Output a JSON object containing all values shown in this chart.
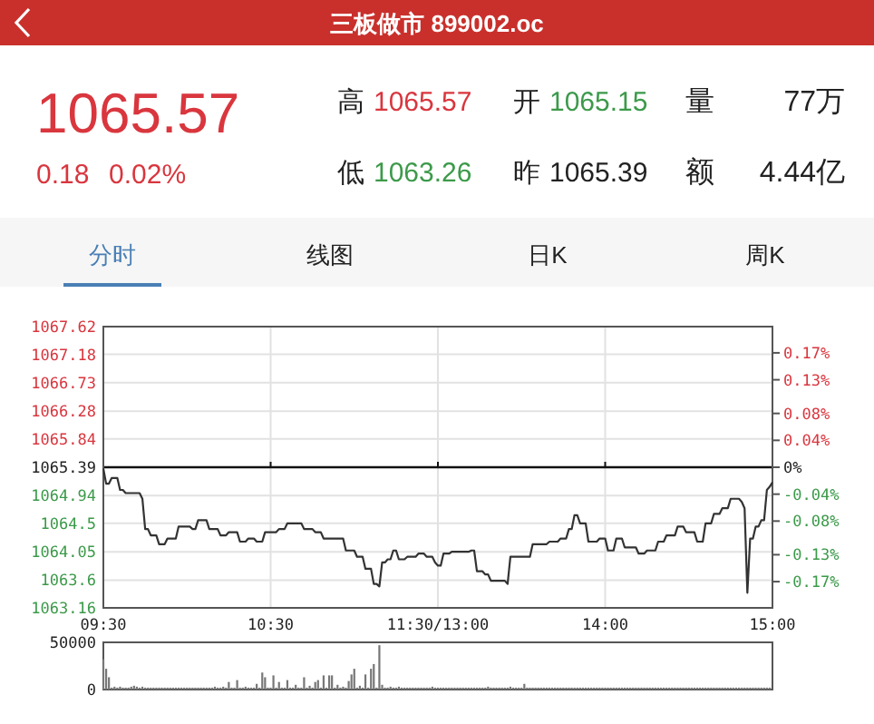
{
  "chart_data": [
    {
      "type": "other",
      "title": "三板做市 899002.oc",
      "annotations": [
        "1065.57",
        "0.18",
        "0.02%",
        "高",
        "1065.57",
        "开",
        "1065.15",
        "量",
        "77万",
        "低",
        "1063.26",
        "昨",
        "1065.39",
        "额",
        "4.44亿",
        "分时",
        "线图",
        "日K",
        "周K"
      ]
    },
    {
      "type": "line",
      "color": "#333333",
      "grid": true,
      "categories": [
        "09:30",
        null,
        null,
        null,
        null,
        null,
        null,
        null,
        null,
        null,
        null,
        null,
        null,
        null,
        null,
        null,
        null,
        null,
        null,
        null,
        null,
        null,
        null,
        null,
        null,
        null,
        null,
        null,
        null,
        null,
        null,
        null,
        null,
        null,
        null,
        null,
        null,
        null,
        null,
        null,
        null,
        null,
        null,
        null,
        null,
        null,
        null,
        null,
        null,
        null,
        null,
        null,
        null,
        null,
        null,
        null,
        null,
        null,
        null,
        null,
        "10:30",
        null,
        null,
        null,
        null,
        null,
        null,
        null,
        null,
        null,
        null,
        null,
        null,
        null,
        null,
        null,
        null,
        null,
        null,
        null,
        null,
        null,
        null,
        null,
        null,
        null,
        null,
        null,
        null,
        null,
        null,
        null,
        null,
        null,
        null,
        null,
        null,
        null,
        null,
        null,
        null,
        null,
        null,
        null,
        null,
        null,
        null,
        null,
        null,
        null,
        null,
        null,
        null,
        null,
        null,
        null,
        null,
        null,
        null,
        null,
        "11:30/13:00",
        null,
        null,
        null,
        null,
        null,
        null,
        null,
        null,
        null,
        null,
        null,
        null,
        null,
        null,
        null,
        null,
        null,
        null,
        null,
        null,
        null,
        null,
        null,
        null,
        null,
        null,
        null,
        null,
        null,
        null,
        null,
        null,
        null,
        null,
        null,
        null,
        null,
        null,
        null,
        null,
        null,
        null,
        null,
        null,
        null,
        null,
        null,
        null,
        null,
        null,
        null,
        null,
        null,
        null,
        null,
        null,
        null,
        null,
        null,
        "14:00",
        null,
        null,
        null,
        null,
        null,
        null,
        null,
        null,
        null,
        null,
        null,
        null,
        null,
        null,
        null,
        null,
        null,
        null,
        null,
        null,
        null,
        null,
        null,
        null,
        null,
        null,
        null,
        null,
        null,
        null,
        null,
        null,
        null,
        null,
        null,
        null,
        null,
        null,
        null,
        null,
        null,
        null,
        null,
        null,
        null,
        null,
        null,
        null,
        null,
        null,
        null,
        null,
        null,
        null,
        null,
        null,
        null,
        null,
        null,
        "15:00"
      ],
      "values": [
        1065.37,
        1065.13,
        1065.13,
        1065.22,
        1065.22,
        1065.22,
        1065.03,
        1065.03,
        1064.98,
        1064.98,
        1064.98,
        1064.98,
        1064.98,
        1064.98,
        1064.89,
        1064.41,
        1064.41,
        1064.31,
        1064.31,
        1064.31,
        1064.17,
        1064.17,
        1064.17,
        1064.26,
        1064.26,
        1064.26,
        1064.26,
        1064.45,
        1064.45,
        1064.45,
        1064.45,
        1064.45,
        1064.41,
        1064.41,
        1064.55,
        1064.55,
        1064.55,
        1064.55,
        1064.41,
        1064.41,
        1064.41,
        1064.41,
        1064.31,
        1064.31,
        1064.31,
        1064.36,
        1064.36,
        1064.36,
        1064.36,
        1064.21,
        1064.21,
        1064.21,
        1064.26,
        1064.26,
        1064.26,
        1064.21,
        1064.21,
        1064.21,
        1064.36,
        1064.36,
        1064.36,
        1064.36,
        1064.36,
        1064.41,
        1064.41,
        1064.41,
        1064.5,
        1064.5,
        1064.5,
        1064.5,
        1064.5,
        1064.5,
        1064.41,
        1064.41,
        1064.41,
        1064.41,
        1064.36,
        1064.36,
        1064.36,
        1064.26,
        1064.26,
        1064.26,
        1064.26,
        1064.26,
        1064.26,
        1064.26,
        1064.26,
        1064.07,
        1064.07,
        1064.07,
        1064.07,
        1063.97,
        1063.97,
        1063.97,
        1063.78,
        1063.78,
        1063.78,
        1063.54,
        1063.54,
        1063.5,
        1063.88,
        1063.88,
        1063.93,
        1063.93,
        1064.07,
        1064.07,
        1063.93,
        1063.93,
        1063.93,
        1063.97,
        1063.97,
        1063.97,
        1063.97,
        1064.02,
        1064.02,
        1064.02,
        1063.97,
        1063.97,
        1063.97,
        1063.88,
        1063.83,
        1063.83,
        1064.02,
        1064.02,
        1064.02,
        1064.05,
        1064.05,
        1064.05,
        1064.05,
        1064.05,
        1064.05,
        1064.05,
        1064.07,
        1064.07,
        1063.74,
        1063.74,
        1063.74,
        1063.69,
        1063.69,
        1063.59,
        1063.59,
        1063.59,
        1063.59,
        1063.59,
        1063.59,
        1063.54,
        1063.97,
        1063.97,
        1063.97,
        1063.97,
        1063.97,
        1063.97,
        1063.97,
        1063.97,
        1064.17,
        1064.17,
        1064.17,
        1064.17,
        1064.17,
        1064.17,
        1064.21,
        1064.21,
        1064.21,
        1064.21,
        1064.26,
        1064.26,
        1064.26,
        1064.41,
        1064.41,
        1064.63,
        1064.63,
        1064.5,
        1064.5,
        1064.5,
        1064.21,
        1064.21,
        1064.21,
        1064.21,
        1064.26,
        1064.26,
        1064.26,
        1064.07,
        1064.07,
        1064.07,
        1064.26,
        1064.26,
        1064.26,
        1064.12,
        1064.12,
        1064.12,
        1064.12,
        1064.12,
        1064.02,
        1064.02,
        1064.02,
        1064.07,
        1064.07,
        1064.07,
        1064.07,
        1064.21,
        1064.21,
        1064.21,
        1064.31,
        1064.31,
        1064.31,
        1064.31,
        1064.45,
        1064.45,
        1064.45,
        1064.36,
        1064.36,
        1064.36,
        1064.36,
        1064.21,
        1064.21,
        1064.21,
        1064.5,
        1064.5,
        1064.5,
        1064.65,
        1064.65,
        1064.65,
        1064.74,
        1064.74,
        1064.74,
        1064.89,
        1064.89,
        1064.89,
        1064.89,
        1064.84,
        1064.74,
        1063.4,
        1064.26,
        1064.26,
        1064.45,
        1064.45,
        1064.55,
        1064.55,
        1065.03,
        1065.08,
        1065.15
      ],
      "ylim": [
        1063.16,
        1067.62
      ],
      "yticks": [
        1067.62,
        1067.18,
        1066.73,
        1066.28,
        1065.84,
        1065.39,
        1064.94,
        1064.5,
        1064.05,
        1063.6,
        1063.16
      ],
      "y2lim": [
        -0.209,
        0.209
      ],
      "y2ticks": [
        {
          "value": 0.17,
          "label": "0.17%"
        },
        {
          "value": 0.13,
          "label": "0.13%"
        },
        {
          "value": 0.08,
          "label": "0.08%"
        },
        {
          "value": 0.04,
          "label": "0.04%"
        },
        {
          "value": 0,
          "label": "0%"
        },
        {
          "value": -0.04,
          "label": "-0.04%"
        },
        {
          "value": -0.08,
          "label": "-0.08%"
        },
        {
          "value": -0.13,
          "label": "-0.13%"
        },
        {
          "value": -0.17,
          "label": "-0.17%"
        }
      ],
      "ref_lines": [
        {
          "axis": "y",
          "value": 1065.39
        }
      ]
    },
    {
      "type": "bar",
      "color": "#777777",
      "tick_labels": "y",
      "categories": [
        null,
        null,
        null,
        null,
        null,
        null,
        null,
        null,
        null,
        null,
        null,
        null,
        null,
        null,
        null,
        null,
        null,
        null,
        null,
        null,
        null,
        null,
        null,
        null,
        null,
        null,
        null,
        null,
        null,
        null,
        null,
        null,
        null,
        null,
        null,
        null,
        null,
        null,
        null,
        null,
        null,
        null,
        null,
        null,
        null,
        null,
        null,
        null,
        null,
        null,
        null,
        null,
        null,
        null,
        null,
        null,
        null,
        null,
        null,
        null,
        null,
        null,
        null,
        null,
        null,
        null,
        null,
        null,
        null,
        null,
        null,
        null,
        null,
        null,
        null,
        null,
        null,
        null,
        null,
        null,
        null,
        null,
        null,
        null,
        null,
        null,
        null,
        null,
        null,
        null,
        null,
        null,
        null,
        null,
        null,
        null,
        null,
        null,
        null,
        null,
        null,
        null,
        null,
        null,
        null,
        null,
        null,
        null,
        null,
        null,
        null,
        null,
        null,
        null,
        null,
        null,
        null,
        null,
        null,
        null,
        null,
        null,
        null,
        null,
        null,
        null,
        null,
        null,
        null,
        null,
        null,
        null,
        null,
        null,
        null,
        null,
        null,
        null,
        null,
        null,
        null,
        null,
        null,
        null,
        null,
        null,
        null,
        null,
        null,
        null,
        null,
        null,
        null,
        null,
        null,
        null,
        null,
        null,
        null,
        null,
        null,
        null,
        null,
        null,
        null,
        null,
        null,
        null,
        null,
        null,
        null,
        null,
        null,
        null,
        null,
        null,
        null,
        null,
        null,
        null,
        null,
        null,
        null,
        null,
        null,
        null,
        null,
        null,
        null,
        null,
        null,
        null,
        null,
        null,
        null,
        null,
        null,
        null,
        null,
        null,
        null,
        null,
        null,
        null,
        null,
        null,
        null,
        null,
        null,
        null,
        null,
        null,
        null,
        null,
        null,
        null,
        null,
        null,
        null,
        null,
        null,
        null,
        null,
        null,
        null,
        null,
        null,
        null,
        null,
        null,
        null,
        null,
        null,
        null,
        null,
        null,
        null,
        null,
        null,
        null,
        null
      ],
      "values": [
        32000,
        22000,
        13000,
        2000,
        3000,
        2000,
        3000,
        2000,
        2000,
        2000,
        3000,
        4000,
        3000,
        2000,
        3000,
        2000,
        2000,
        2000,
        2000,
        2000,
        2000,
        2000,
        2000,
        2000,
        2000,
        2000,
        2000,
        2000,
        2000,
        2000,
        2000,
        2000,
        2000,
        2000,
        2000,
        2000,
        2000,
        2000,
        2000,
        2000,
        3000,
        2000,
        2000,
        3000,
        2000,
        8000,
        2000,
        2000,
        10000,
        2000,
        2000,
        3000,
        2000,
        2000,
        2000,
        6000,
        2000,
        18000,
        13000,
        2000,
        2000,
        15000,
        2000,
        8000,
        2000,
        2000,
        10000,
        2000,
        2000,
        5000,
        2000,
        2000,
        13000,
        2000,
        4000,
        2000,
        8000,
        10000,
        2000,
        15000,
        2000,
        15000,
        15000,
        2000,
        5000,
        2000,
        3000,
        2000,
        9000,
        16000,
        22000,
        2000,
        4000,
        2000,
        16000,
        2000,
        22000,
        27000,
        2000,
        47000,
        5000,
        2000,
        2000,
        3000,
        2000,
        2000,
        3000,
        2000,
        2000,
        2000,
        2000,
        2000,
        2000,
        2000,
        2000,
        2000,
        2000,
        2000,
        3000,
        2000,
        2000,
        2000,
        2000,
        2000,
        2000,
        2000,
        2000,
        2000,
        2000,
        2000,
        2000,
        2000,
        2000,
        2000,
        2000,
        2000,
        2000,
        2000,
        3000,
        2000,
        2000,
        2000,
        2000,
        2000,
        2000,
        2000,
        3000,
        2000,
        2000,
        2000,
        2000,
        6000,
        2000,
        2000,
        2000,
        2000,
        2000,
        2000,
        2000,
        2000,
        2000,
        2000,
        2000,
        2000,
        2000,
        2000,
        2000,
        2000,
        2000,
        2000,
        2000,
        2000,
        2000,
        2000,
        2000,
        2000,
        2000,
        2000,
        2000,
        2000,
        2000,
        2000,
        2000,
        2000,
        2000,
        2000,
        2000,
        2000,
        2000,
        2000,
        2000,
        2000,
        2000,
        2000,
        2000,
        2000,
        2000,
        2000,
        2000,
        2000,
        2000,
        2000,
        2000,
        2000,
        2000,
        2000,
        2000,
        2000,
        2000,
        2000,
        2000,
        2000,
        2000,
        2000,
        2000,
        2000,
        2000,
        2000,
        2000,
        2000,
        2000,
        2000,
        2000,
        2000,
        2000,
        2000,
        2000,
        2000,
        2000,
        2000,
        2000,
        2000,
        2000,
        2000,
        2000,
        2000,
        2000,
        2000,
        2000,
        2000,
        null
      ],
      "ylim": [
        0,
        50000
      ],
      "yticks": [
        0,
        50000
      ]
    }
  ]
}
